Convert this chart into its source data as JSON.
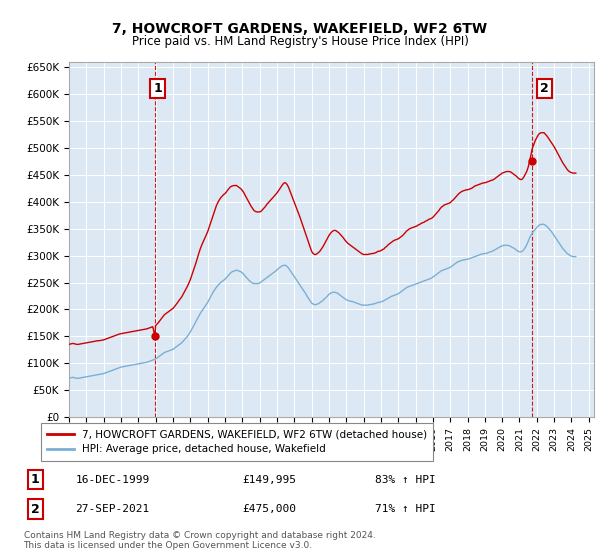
{
  "title": "7, HOWCROFT GARDENS, WAKEFIELD, WF2 6TW",
  "subtitle": "Price paid vs. HM Land Registry's House Price Index (HPI)",
  "background_color": "#ffffff",
  "plot_bg_color": "#dce9f5",
  "grid_color": "#ffffff",
  "ylim": [
    0,
    660000
  ],
  "yticks": [
    0,
    50000,
    100000,
    150000,
    200000,
    250000,
    300000,
    350000,
    400000,
    450000,
    500000,
    550000,
    600000,
    650000
  ],
  "ytick_labels": [
    "£0",
    "£50K",
    "£100K",
    "£150K",
    "£200K",
    "£250K",
    "£300K",
    "£350K",
    "£400K",
    "£450K",
    "£500K",
    "£550K",
    "£600K",
    "£650K"
  ],
  "sale1_date_num": 1999.96,
  "sale1_price": 149995,
  "sale2_date_num": 2021.74,
  "sale2_price": 475000,
  "hpi_color": "#7bafd4",
  "price_color": "#cc0000",
  "marker_color": "#cc0000",
  "annotation1_label": "1",
  "annotation2_label": "2",
  "legend_label1": "7, HOWCROFT GARDENS, WAKEFIELD, WF2 6TW (detached house)",
  "legend_label2": "HPI: Average price, detached house, Wakefield",
  "table_row1": [
    "1",
    "16-DEC-1999",
    "£149,995",
    "83% ↑ HPI"
  ],
  "table_row2": [
    "2",
    "27-SEP-2021",
    "£475,000",
    "71% ↑ HPI"
  ],
  "footnote": "Contains HM Land Registry data © Crown copyright and database right 2024.\nThis data is licensed under the Open Government Licence v3.0.",
  "hpi_data_years": [
    1995.0,
    1995.083,
    1995.167,
    1995.25,
    1995.333,
    1995.417,
    1995.5,
    1995.583,
    1995.667,
    1995.75,
    1995.833,
    1995.917,
    1996.0,
    1996.083,
    1996.167,
    1996.25,
    1996.333,
    1996.417,
    1996.5,
    1996.583,
    1996.667,
    1996.75,
    1996.833,
    1996.917,
    1997.0,
    1997.083,
    1997.167,
    1997.25,
    1997.333,
    1997.417,
    1997.5,
    1997.583,
    1997.667,
    1997.75,
    1997.833,
    1997.917,
    1998.0,
    1998.083,
    1998.167,
    1998.25,
    1998.333,
    1998.417,
    1998.5,
    1998.583,
    1998.667,
    1998.75,
    1998.833,
    1998.917,
    1999.0,
    1999.083,
    1999.167,
    1999.25,
    1999.333,
    1999.417,
    1999.5,
    1999.583,
    1999.667,
    1999.75,
    1999.833,
    1999.917,
    2000.0,
    2000.083,
    2000.167,
    2000.25,
    2000.333,
    2000.417,
    2000.5,
    2000.583,
    2000.667,
    2000.75,
    2000.833,
    2000.917,
    2001.0,
    2001.083,
    2001.167,
    2001.25,
    2001.333,
    2001.417,
    2001.5,
    2001.583,
    2001.667,
    2001.75,
    2001.833,
    2001.917,
    2002.0,
    2002.083,
    2002.167,
    2002.25,
    2002.333,
    2002.417,
    2002.5,
    2002.583,
    2002.667,
    2002.75,
    2002.833,
    2002.917,
    2003.0,
    2003.083,
    2003.167,
    2003.25,
    2003.333,
    2003.417,
    2003.5,
    2003.583,
    2003.667,
    2003.75,
    2003.833,
    2003.917,
    2004.0,
    2004.083,
    2004.167,
    2004.25,
    2004.333,
    2004.417,
    2004.5,
    2004.583,
    2004.667,
    2004.75,
    2004.833,
    2004.917,
    2005.0,
    2005.083,
    2005.167,
    2005.25,
    2005.333,
    2005.417,
    2005.5,
    2005.583,
    2005.667,
    2005.75,
    2005.833,
    2005.917,
    2006.0,
    2006.083,
    2006.167,
    2006.25,
    2006.333,
    2006.417,
    2006.5,
    2006.583,
    2006.667,
    2006.75,
    2006.833,
    2006.917,
    2007.0,
    2007.083,
    2007.167,
    2007.25,
    2007.333,
    2007.417,
    2007.5,
    2007.583,
    2007.667,
    2007.75,
    2007.833,
    2007.917,
    2008.0,
    2008.083,
    2008.167,
    2008.25,
    2008.333,
    2008.417,
    2008.5,
    2008.583,
    2008.667,
    2008.75,
    2008.833,
    2008.917,
    2009.0,
    2009.083,
    2009.167,
    2009.25,
    2009.333,
    2009.417,
    2009.5,
    2009.583,
    2009.667,
    2009.75,
    2009.833,
    2009.917,
    2010.0,
    2010.083,
    2010.167,
    2010.25,
    2010.333,
    2010.417,
    2010.5,
    2010.583,
    2010.667,
    2010.75,
    2010.833,
    2010.917,
    2011.0,
    2011.083,
    2011.167,
    2011.25,
    2011.333,
    2011.417,
    2011.5,
    2011.583,
    2011.667,
    2011.75,
    2011.833,
    2011.917,
    2012.0,
    2012.083,
    2012.167,
    2012.25,
    2012.333,
    2012.417,
    2012.5,
    2012.583,
    2012.667,
    2012.75,
    2012.833,
    2012.917,
    2013.0,
    2013.083,
    2013.167,
    2013.25,
    2013.333,
    2013.417,
    2013.5,
    2013.583,
    2013.667,
    2013.75,
    2013.833,
    2013.917,
    2014.0,
    2014.083,
    2014.167,
    2014.25,
    2014.333,
    2014.417,
    2014.5,
    2014.583,
    2014.667,
    2014.75,
    2014.833,
    2014.917,
    2015.0,
    2015.083,
    2015.167,
    2015.25,
    2015.333,
    2015.417,
    2015.5,
    2015.583,
    2015.667,
    2015.75,
    2015.833,
    2015.917,
    2016.0,
    2016.083,
    2016.167,
    2016.25,
    2016.333,
    2016.417,
    2016.5,
    2016.583,
    2016.667,
    2016.75,
    2016.833,
    2016.917,
    2017.0,
    2017.083,
    2017.167,
    2017.25,
    2017.333,
    2017.417,
    2017.5,
    2017.583,
    2017.667,
    2017.75,
    2017.833,
    2017.917,
    2018.0,
    2018.083,
    2018.167,
    2018.25,
    2018.333,
    2018.417,
    2018.5,
    2018.583,
    2018.667,
    2018.75,
    2018.833,
    2018.917,
    2019.0,
    2019.083,
    2019.167,
    2019.25,
    2019.333,
    2019.417,
    2019.5,
    2019.583,
    2019.667,
    2019.75,
    2019.833,
    2019.917,
    2020.0,
    2020.083,
    2020.167,
    2020.25,
    2020.333,
    2020.417,
    2020.5,
    2020.583,
    2020.667,
    2020.75,
    2020.833,
    2020.917,
    2021.0,
    2021.083,
    2021.167,
    2021.25,
    2021.333,
    2021.417,
    2021.5,
    2021.583,
    2021.667,
    2021.75,
    2021.833,
    2021.917,
    2022.0,
    2022.083,
    2022.167,
    2022.25,
    2022.333,
    2022.417,
    2022.5,
    2022.583,
    2022.667,
    2022.75,
    2022.833,
    2022.917,
    2023.0,
    2023.083,
    2023.167,
    2023.25,
    2023.333,
    2023.417,
    2023.5,
    2023.583,
    2023.667,
    2023.75,
    2023.833,
    2023.917,
    2024.0,
    2024.083,
    2024.167,
    2024.25
  ],
  "hpi_data_values": [
    72000,
    73000,
    73500,
    74000,
    73000,
    72500,
    72000,
    72500,
    73000,
    73500,
    74000,
    74500,
    75000,
    75500,
    76000,
    76500,
    77000,
    77500,
    78000,
    78500,
    79000,
    79500,
    80000,
    80500,
    81000,
    82000,
    83000,
    84000,
    85000,
    86000,
    87000,
    88000,
    89000,
    90000,
    91000,
    92000,
    93000,
    93500,
    94000,
    94500,
    95000,
    95500,
    96000,
    96500,
    97000,
    97500,
    98000,
    98500,
    99000,
    99500,
    100000,
    100500,
    101000,
    101500,
    102000,
    103000,
    104000,
    105000,
    106000,
    107000,
    108000,
    110000,
    112000,
    114000,
    116000,
    118000,
    120000,
    121000,
    122000,
    123000,
    124000,
    125000,
    126000,
    128000,
    130000,
    132000,
    134000,
    136000,
    138000,
    141000,
    144000,
    147000,
    150000,
    154000,
    158000,
    163000,
    168000,
    173000,
    178000,
    183000,
    188000,
    193000,
    197000,
    201000,
    205000,
    209000,
    213000,
    218000,
    223000,
    228000,
    233000,
    237000,
    241000,
    244000,
    247000,
    250000,
    252000,
    254000,
    256000,
    259000,
    262000,
    265000,
    268000,
    270000,
    271000,
    272000,
    273000,
    272000,
    271000,
    270000,
    268000,
    265000,
    262000,
    259000,
    256000,
    253000,
    251000,
    249000,
    248000,
    248000,
    248000,
    248000,
    249000,
    251000,
    253000,
    255000,
    257000,
    259000,
    261000,
    263000,
    265000,
    267000,
    269000,
    271000,
    273000,
    276000,
    278000,
    280000,
    281000,
    282000,
    282000,
    280000,
    277000,
    273000,
    269000,
    265000,
    261000,
    257000,
    253000,
    249000,
    245000,
    241000,
    237000,
    233000,
    229000,
    224000,
    220000,
    216000,
    212000,
    210000,
    209000,
    209000,
    210000,
    211000,
    213000,
    215000,
    217000,
    220000,
    222000,
    225000,
    228000,
    230000,
    231000,
    232000,
    232000,
    231000,
    230000,
    228000,
    226000,
    224000,
    222000,
    220000,
    218000,
    217000,
    216000,
    215000,
    215000,
    214000,
    213000,
    212000,
    211000,
    210000,
    209000,
    208000,
    208000,
    208000,
    208000,
    208000,
    209000,
    209000,
    210000,
    210000,
    211000,
    212000,
    213000,
    213000,
    214000,
    215000,
    216000,
    218000,
    219000,
    221000,
    222000,
    224000,
    225000,
    226000,
    227000,
    228000,
    229000,
    231000,
    233000,
    235000,
    237000,
    239000,
    241000,
    242000,
    243000,
    244000,
    245000,
    246000,
    247000,
    248000,
    249000,
    250000,
    251000,
    252000,
    253000,
    254000,
    255000,
    256000,
    257000,
    258000,
    260000,
    262000,
    264000,
    266000,
    268000,
    270000,
    272000,
    273000,
    274000,
    275000,
    276000,
    277000,
    278000,
    280000,
    282000,
    284000,
    286000,
    288000,
    289000,
    290000,
    291000,
    292000,
    292000,
    293000,
    293000,
    294000,
    295000,
    296000,
    297000,
    298000,
    299000,
    300000,
    301000,
    302000,
    303000,
    303000,
    304000,
    304000,
    305000,
    306000,
    307000,
    308000,
    309000,
    311000,
    312000,
    314000,
    315000,
    317000,
    318000,
    319000,
    319000,
    319000,
    319000,
    318000,
    317000,
    315000,
    314000,
    312000,
    310000,
    308000,
    307000,
    307000,
    308000,
    311000,
    315000,
    320000,
    326000,
    333000,
    338000,
    342000,
    346000,
    349000,
    352000,
    355000,
    357000,
    358000,
    358000,
    358000,
    356000,
    354000,
    351000,
    348000,
    345000,
    341000,
    337000,
    333000,
    329000,
    325000,
    321000,
    317000,
    313000,
    310000,
    307000,
    304000,
    302000,
    300000,
    299000,
    298000,
    298000,
    298000
  ],
  "price_data_years": [
    1995.0,
    1995.083,
    1995.167,
    1995.25,
    1995.333,
    1995.417,
    1995.5,
    1995.583,
    1995.667,
    1995.75,
    1995.833,
    1995.917,
    1996.0,
    1996.083,
    1996.167,
    1996.25,
    1996.333,
    1996.417,
    1996.5,
    1996.583,
    1996.667,
    1996.75,
    1996.833,
    1996.917,
    1997.0,
    1997.083,
    1997.167,
    1997.25,
    1997.333,
    1997.417,
    1997.5,
    1997.583,
    1997.667,
    1997.75,
    1997.833,
    1997.917,
    1998.0,
    1998.083,
    1998.167,
    1998.25,
    1998.333,
    1998.417,
    1998.5,
    1998.583,
    1998.667,
    1998.75,
    1998.833,
    1998.917,
    1999.0,
    1999.083,
    1999.167,
    1999.25,
    1999.333,
    1999.417,
    1999.5,
    1999.583,
    1999.667,
    1999.75,
    1999.833,
    1999.96,
    2000.0,
    2000.083,
    2000.167,
    2000.25,
    2000.333,
    2000.417,
    2000.5,
    2000.583,
    2000.667,
    2000.75,
    2000.833,
    2000.917,
    2001.0,
    2001.083,
    2001.167,
    2001.25,
    2001.333,
    2001.417,
    2001.5,
    2001.583,
    2001.667,
    2001.75,
    2001.833,
    2001.917,
    2002.0,
    2002.083,
    2002.167,
    2002.25,
    2002.333,
    2002.417,
    2002.5,
    2002.583,
    2002.667,
    2002.75,
    2002.833,
    2002.917,
    2003.0,
    2003.083,
    2003.167,
    2003.25,
    2003.333,
    2003.417,
    2003.5,
    2003.583,
    2003.667,
    2003.75,
    2003.833,
    2003.917,
    2004.0,
    2004.083,
    2004.167,
    2004.25,
    2004.333,
    2004.417,
    2004.5,
    2004.583,
    2004.667,
    2004.75,
    2004.833,
    2004.917,
    2005.0,
    2005.083,
    2005.167,
    2005.25,
    2005.333,
    2005.417,
    2005.5,
    2005.583,
    2005.667,
    2005.75,
    2005.833,
    2005.917,
    2006.0,
    2006.083,
    2006.167,
    2006.25,
    2006.333,
    2006.417,
    2006.5,
    2006.583,
    2006.667,
    2006.75,
    2006.833,
    2006.917,
    2007.0,
    2007.083,
    2007.167,
    2007.25,
    2007.333,
    2007.417,
    2007.5,
    2007.583,
    2007.667,
    2007.75,
    2007.833,
    2007.917,
    2008.0,
    2008.083,
    2008.167,
    2008.25,
    2008.333,
    2008.417,
    2008.5,
    2008.583,
    2008.667,
    2008.75,
    2008.833,
    2008.917,
    2009.0,
    2009.083,
    2009.167,
    2009.25,
    2009.333,
    2009.417,
    2009.5,
    2009.583,
    2009.667,
    2009.75,
    2009.833,
    2009.917,
    2010.0,
    2010.083,
    2010.167,
    2010.25,
    2010.333,
    2010.417,
    2010.5,
    2010.583,
    2010.667,
    2010.75,
    2010.833,
    2010.917,
    2011.0,
    2011.083,
    2011.167,
    2011.25,
    2011.333,
    2011.417,
    2011.5,
    2011.583,
    2011.667,
    2011.75,
    2011.833,
    2011.917,
    2012.0,
    2012.083,
    2012.167,
    2012.25,
    2012.333,
    2012.417,
    2012.5,
    2012.583,
    2012.667,
    2012.75,
    2012.833,
    2012.917,
    2013.0,
    2013.083,
    2013.167,
    2013.25,
    2013.333,
    2013.417,
    2013.5,
    2013.583,
    2013.667,
    2013.75,
    2013.833,
    2013.917,
    2014.0,
    2014.083,
    2014.167,
    2014.25,
    2014.333,
    2014.417,
    2014.5,
    2014.583,
    2014.667,
    2014.75,
    2014.833,
    2014.917,
    2015.0,
    2015.083,
    2015.167,
    2015.25,
    2015.333,
    2015.417,
    2015.5,
    2015.583,
    2015.667,
    2015.75,
    2015.833,
    2015.917,
    2016.0,
    2016.083,
    2016.167,
    2016.25,
    2016.333,
    2016.417,
    2016.5,
    2016.583,
    2016.667,
    2016.75,
    2016.833,
    2016.917,
    2017.0,
    2017.083,
    2017.167,
    2017.25,
    2017.333,
    2017.417,
    2017.5,
    2017.583,
    2017.667,
    2017.75,
    2017.833,
    2017.917,
    2018.0,
    2018.083,
    2018.167,
    2018.25,
    2018.333,
    2018.417,
    2018.5,
    2018.583,
    2018.667,
    2018.75,
    2018.833,
    2018.917,
    2019.0,
    2019.083,
    2019.167,
    2019.25,
    2019.333,
    2019.417,
    2019.5,
    2019.583,
    2019.667,
    2019.75,
    2019.833,
    2019.917,
    2020.0,
    2020.083,
    2020.167,
    2020.25,
    2020.333,
    2020.417,
    2020.5,
    2020.583,
    2020.667,
    2020.75,
    2020.833,
    2020.917,
    2021.0,
    2021.083,
    2021.167,
    2021.25,
    2021.333,
    2021.417,
    2021.5,
    2021.583,
    2021.667,
    2021.74,
    2021.833,
    2021.917,
    2022.0,
    2022.083,
    2022.167,
    2022.25,
    2022.333,
    2022.417,
    2022.5,
    2022.583,
    2022.667,
    2022.75,
    2022.833,
    2022.917,
    2023.0,
    2023.083,
    2023.167,
    2023.25,
    2023.333,
    2023.417,
    2023.5,
    2023.583,
    2023.667,
    2023.75,
    2023.833,
    2023.917,
    2024.0,
    2024.083,
    2024.167,
    2024.25
  ],
  "price_data_values": [
    135000,
    136000,
    136500,
    137000,
    136000,
    135500,
    135000,
    135500,
    136000,
    136500,
    137000,
    137500,
    138000,
    138500,
    139000,
    139500,
    140000,
    140500,
    141000,
    141500,
    142000,
    142000,
    142500,
    143000,
    143500,
    144500,
    145500,
    146500,
    147500,
    148500,
    149500,
    150500,
    151500,
    152500,
    153500,
    154500,
    155000,
    155500,
    156000,
    156500,
    157000,
    157500,
    158000,
    158500,
    159000,
    159500,
    160000,
    160500,
    161000,
    161500,
    162000,
    162500,
    163000,
    163500,
    164000,
    165000,
    166000,
    167000,
    168000,
    149995,
    170000,
    173000,
    176000,
    179500,
    183000,
    186500,
    190000,
    192000,
    194000,
    196000,
    198000,
    200000,
    202000,
    205000,
    208500,
    212000,
    216000,
    219500,
    223000,
    228000,
    233000,
    238000,
    243000,
    249000,
    255000,
    263000,
    271000,
    279000,
    287000,
    296000,
    305000,
    313000,
    320000,
    326000,
    332000,
    338000,
    344000,
    352000,
    360000,
    368000,
    376000,
    384000,
    392000,
    398000,
    403000,
    407000,
    410000,
    413000,
    415000,
    418000,
    422000,
    425000,
    428000,
    429000,
    430000,
    430000,
    430000,
    428000,
    426000,
    424000,
    421000,
    417000,
    412000,
    407000,
    402000,
    397000,
    392000,
    388000,
    384000,
    382000,
    381000,
    381000,
    381000,
    382000,
    385000,
    388000,
    391000,
    395000,
    398000,
    401000,
    404000,
    407000,
    410000,
    413000,
    416000,
    420000,
    424000,
    428000,
    432000,
    435000,
    435000,
    432000,
    427000,
    420000,
    413000,
    406000,
    399000,
    392000,
    385000,
    378000,
    371000,
    363000,
    355000,
    347000,
    339000,
    331000,
    323000,
    315000,
    308000,
    304000,
    302000,
    302000,
    304000,
    306000,
    309000,
    313000,
    317000,
    322000,
    327000,
    332000,
    337000,
    341000,
    344000,
    346000,
    347000,
    346000,
    344000,
    342000,
    339000,
    336000,
    333000,
    329000,
    326000,
    323000,
    321000,
    319000,
    317000,
    315000,
    313000,
    311000,
    309000,
    307000,
    305000,
    303000,
    302000,
    302000,
    302000,
    302000,
    303000,
    303000,
    304000,
    304000,
    305000,
    306000,
    308000,
    308000,
    309000,
    311000,
    312000,
    315000,
    317000,
    320000,
    322000,
    324000,
    326000,
    328000,
    329000,
    330000,
    331000,
    333000,
    335000,
    337000,
    340000,
    343000,
    346000,
    348000,
    350000,
    351000,
    352000,
    353000,
    354000,
    355000,
    357000,
    358000,
    360000,
    361000,
    362000,
    364000,
    365000,
    367000,
    368000,
    369000,
    371000,
    374000,
    377000,
    380000,
    383000,
    387000,
    390000,
    392000,
    394000,
    395000,
    396000,
    397000,
    398000,
    401000,
    403000,
    406000,
    409000,
    412000,
    415000,
    417000,
    419000,
    420000,
    421000,
    422000,
    422000,
    423000,
    424000,
    425000,
    427000,
    429000,
    430000,
    431000,
    432000,
    433000,
    434000,
    435000,
    435000,
    436000,
    437000,
    438000,
    439000,
    440000,
    441000,
    443000,
    445000,
    447000,
    449000,
    451000,
    453000,
    454000,
    455000,
    456000,
    456000,
    456000,
    455000,
    453000,
    451000,
    449000,
    447000,
    444000,
    442000,
    441000,
    442000,
    446000,
    451000,
    456000,
    464000,
    475000,
    488000,
    499000,
    507000,
    514000,
    519000,
    524000,
    527000,
    528000,
    528000,
    528000,
    525000,
    522000,
    518000,
    514000,
    510000,
    506000,
    502000,
    497000,
    492000,
    487000,
    482000,
    477000,
    472000,
    468000,
    464000,
    460000,
    457000,
    455000,
    454000,
    453000,
    453000,
    453000
  ]
}
